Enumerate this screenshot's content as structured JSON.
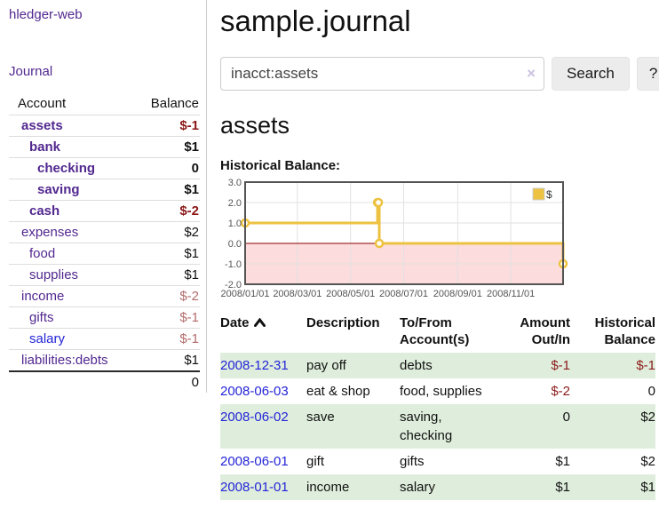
{
  "app": {
    "title": "hledger-web",
    "nav_journal": "Journal"
  },
  "sidebar": {
    "header": {
      "account": "Account",
      "balance": "Balance"
    },
    "accounts": [
      {
        "name": "assets",
        "balance": "$-1"
      },
      {
        "name": "bank",
        "balance": "$1"
      },
      {
        "name": "checking",
        "balance": "0"
      },
      {
        "name": "saving",
        "balance": "$1"
      },
      {
        "name": "cash",
        "balance": "$-2"
      },
      {
        "name": "expenses",
        "balance": "$2"
      },
      {
        "name": "food",
        "balance": "$1"
      },
      {
        "name": "supplies",
        "balance": "$1"
      },
      {
        "name": "income",
        "balance": "$-2"
      },
      {
        "name": "gifts",
        "balance": "$-1"
      },
      {
        "name": "salary",
        "balance": "$-1"
      },
      {
        "name": "liabilities:debts",
        "balance": "$1"
      }
    ],
    "total": "0"
  },
  "main": {
    "title": "sample.journal",
    "search": {
      "value": "inacct:assets",
      "clear": "×",
      "button": "Search",
      "help": "?"
    },
    "account_title": "assets",
    "chart_label": "Historical Balance:"
  },
  "chart_data": {
    "type": "line",
    "step": true,
    "title": "Historical Balance",
    "xlim": [
      "2008-01-01",
      "2008-12-31"
    ],
    "ylim": [
      -2,
      3
    ],
    "y_ticks": [
      3,
      2,
      1,
      0,
      -1,
      -2
    ],
    "x_ticks": [
      {
        "date": "2008-01-01",
        "label": "2008/01/01"
      },
      {
        "date": "2008-03-01",
        "label": "2008/03/01"
      },
      {
        "date": "2008-05-01",
        "label": "2008/05/01"
      },
      {
        "date": "2008-07-01",
        "label": "2008/07/01"
      },
      {
        "date": "2008-09-01",
        "label": "2008/09/01"
      },
      {
        "date": "2008-11-01",
        "label": "2008/11/01"
      }
    ],
    "series": [
      {
        "name": "$",
        "color": "#edc240",
        "points": [
          [
            "2008-01-01",
            1
          ],
          [
            "2008-06-01",
            2
          ],
          [
            "2008-06-02",
            2
          ],
          [
            "2008-06-03",
            0
          ],
          [
            "2008-12-31",
            -1
          ]
        ]
      }
    ],
    "colors": {
      "negative_fill": "#fcdcdc",
      "zero_line": "#8b0000",
      "grid": "#e2e2e2",
      "border": "#545454",
      "tick_text": "#545454"
    },
    "legend_position": "top-right",
    "grid": true
  },
  "register": {
    "columns": [
      {
        "l1": "Date",
        "l2": ""
      },
      {
        "l1": "Description",
        "l2": ""
      },
      {
        "l1": "To/From",
        "l2": "Account(s)"
      },
      {
        "l1": "Amount",
        "l2": "Out/In"
      },
      {
        "l1": "Historical",
        "l2": "Balance"
      }
    ],
    "rows": [
      {
        "date": "2008-12-31",
        "description": "pay off",
        "accounts": "debts",
        "amount": "$-1",
        "balance": "$-1"
      },
      {
        "date": "2008-06-03",
        "description": "eat & shop",
        "accounts": "food, supplies",
        "amount": "$-2",
        "balance": "0"
      },
      {
        "date": "2008-06-02",
        "description": "save",
        "accounts": "saving, checking",
        "amount": "0",
        "balance": "$2"
      },
      {
        "date": "2008-06-01",
        "description": "gift",
        "accounts": "gifts",
        "amount": "$1",
        "balance": "$2"
      },
      {
        "date": "2008-01-01",
        "description": "income",
        "accounts": "salary",
        "amount": "$1",
        "balance": "$1"
      }
    ]
  }
}
